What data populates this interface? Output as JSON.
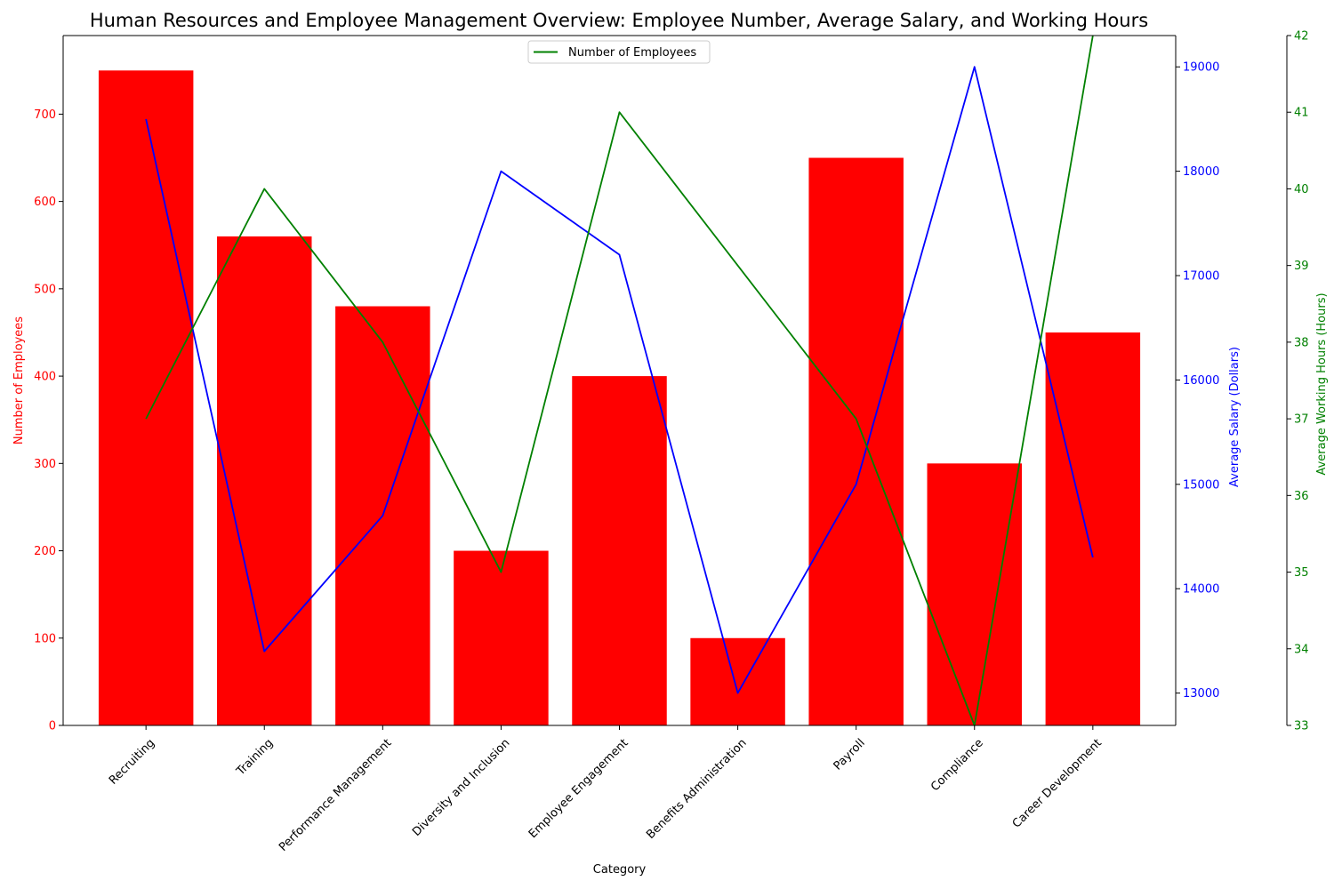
{
  "chart_data": {
    "type": "bar",
    "title": "Human Resources and Employee Management Overview: Employee Number, Average Salary, and Working Hours",
    "xlabel": "Category",
    "categories": [
      "Recruiting",
      "Training",
      "Performance Management",
      "Diversity and Inclusion",
      "Employee Engagement",
      "Benefits Administration",
      "Payroll",
      "Compliance",
      "Career Development"
    ],
    "series": [
      {
        "name": "Number of Employees",
        "type": "bar",
        "axis": "left",
        "color": "#ff0000",
        "values": [
          750,
          560,
          480,
          200,
          400,
          100,
          650,
          300,
          450
        ]
      },
      {
        "type": "line",
        "axis": "right",
        "color": "#0000ff",
        "values": [
          18500,
          13400,
          14700,
          18000,
          17200,
          13000,
          15000,
          19000,
          14300
        ]
      },
      {
        "type": "line",
        "axis": "right2",
        "color": "#008000",
        "values": [
          37,
          40,
          38,
          35,
          41,
          39,
          37,
          33,
          42
        ]
      }
    ],
    "axes": {
      "left": {
        "label": "Number of Employees",
        "color": "#ff0000",
        "ylim": [
          0,
          790
        ],
        "ticks": [
          0,
          100,
          200,
          300,
          400,
          500,
          600,
          700
        ]
      },
      "right": {
        "label": "Average Salary (Dollars)",
        "color": "#0000ff",
        "ylim": [
          12690,
          19300
        ],
        "ticks": [
          13000,
          14000,
          15000,
          16000,
          17000,
          18000,
          19000
        ]
      },
      "right2": {
        "label": "Average Working Hours (Hours)",
        "color": "#008000",
        "ylim": [
          33,
          42
        ],
        "ticks": [
          33,
          34,
          35,
          36,
          37,
          38,
          39,
          40,
          41,
          42
        ]
      }
    },
    "legend": {
      "placement": "top-center",
      "entries": [
        {
          "label": "Number of Employees",
          "color": "#008000"
        }
      ]
    },
    "grid": false
  }
}
